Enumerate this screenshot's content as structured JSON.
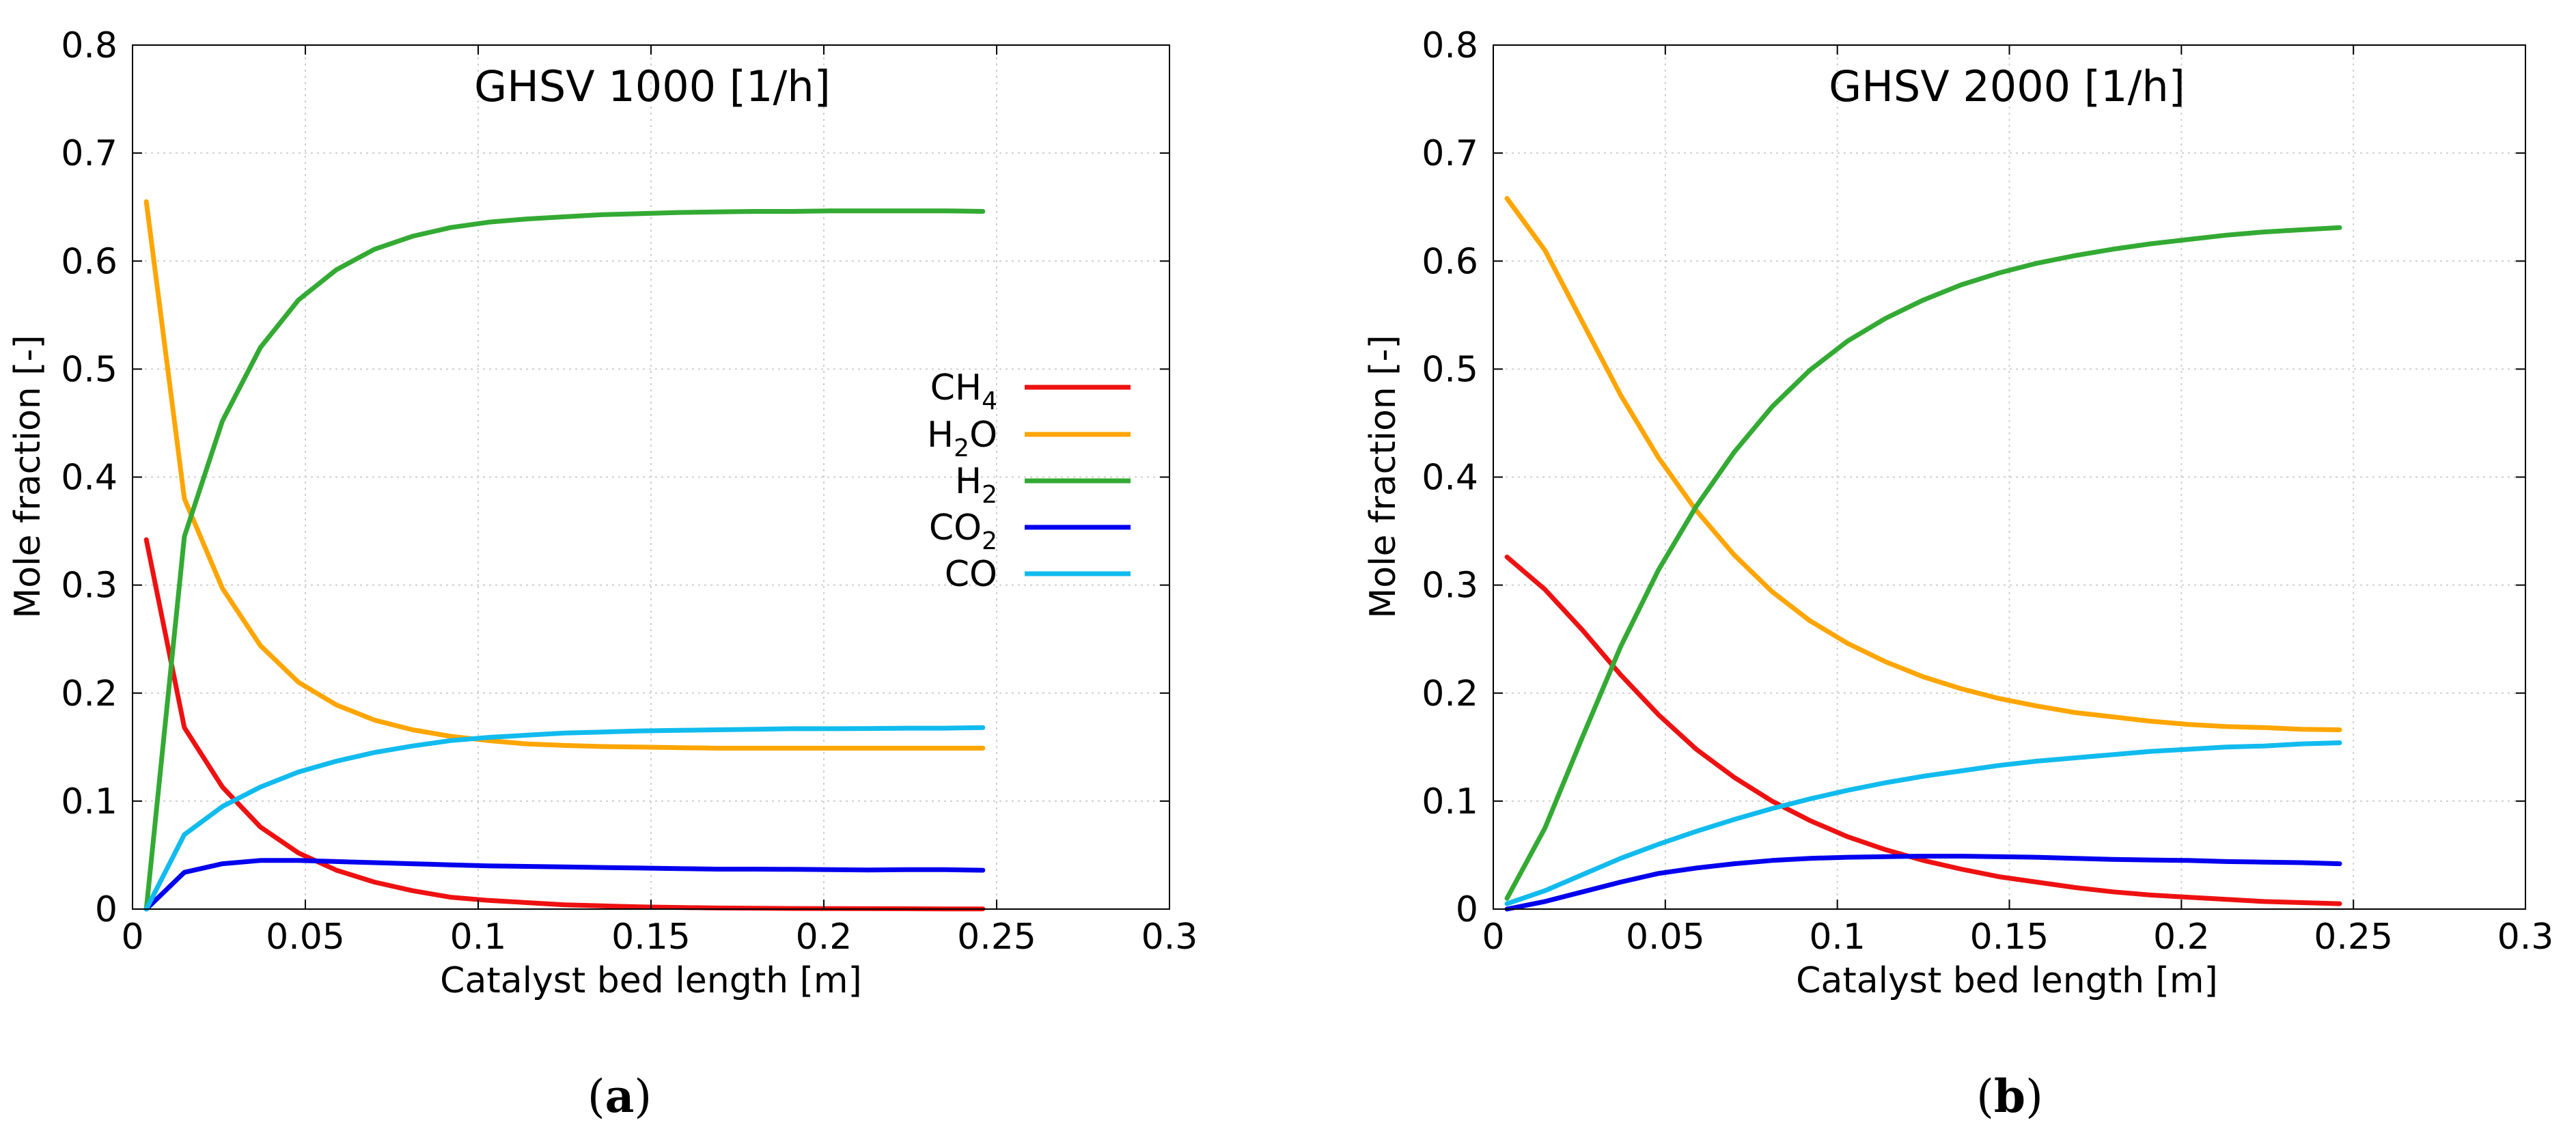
{
  "chart_data": [
    {
      "id": "a",
      "type": "line",
      "panel_label": "a",
      "title": "GHSV 1000 [1/h]",
      "xlabel": "Catalyst bed length [m]",
      "ylabel": "Mole fraction [-]",
      "xlim": [
        0,
        0.3
      ],
      "ylim": [
        0,
        0.8
      ],
      "xticks": [
        "0",
        "0.05",
        "0.1",
        "0.15",
        "0.2",
        "0.25",
        "0.3"
      ],
      "yticks": [
        "0",
        "0.1",
        "0.2",
        "0.3",
        "0.4",
        "0.5",
        "0.6",
        "0.7",
        "0.8"
      ],
      "grid": true,
      "legend": "center-right",
      "x": [
        0.004,
        0.015,
        0.026,
        0.037,
        0.048,
        0.059,
        0.07,
        0.081,
        0.092,
        0.103,
        0.114,
        0.125,
        0.136,
        0.147,
        0.158,
        0.169,
        0.18,
        0.191,
        0.202,
        0.213,
        0.224,
        0.235,
        0.246
      ],
      "series": [
        {
          "name": "CH4",
          "label_main": "CH",
          "label_sub": "4",
          "label_tail": "",
          "color": "#ee1111",
          "values": [
            0.342,
            0.168,
            0.113,
            0.076,
            0.052,
            0.036,
            0.025,
            0.017,
            0.011,
            0.008,
            0.006,
            0.004,
            0.003,
            0.002,
            0.0015,
            0.001,
            0.0008,
            0.0006,
            0.0005,
            0.0004,
            0.0003,
            0.0002,
            0.0002
          ]
        },
        {
          "name": "H2O",
          "label_main": "H",
          "label_sub": "2",
          "label_tail": "O",
          "color": "#ffa500",
          "values": [
            0.655,
            0.38,
            0.297,
            0.244,
            0.21,
            0.189,
            0.175,
            0.166,
            0.16,
            0.156,
            0.153,
            0.1515,
            0.1505,
            0.15,
            0.1495,
            0.149,
            0.149,
            0.149,
            0.149,
            0.149,
            0.149,
            0.149,
            0.149
          ]
        },
        {
          "name": "H2",
          "label_main": "H",
          "label_sub": "2",
          "label_tail": "",
          "color": "#33aa33",
          "values": [
            0.0,
            0.345,
            0.452,
            0.52,
            0.564,
            0.592,
            0.611,
            0.623,
            0.631,
            0.636,
            0.639,
            0.641,
            0.643,
            0.644,
            0.645,
            0.6455,
            0.646,
            0.646,
            0.6465,
            0.6465,
            0.6465,
            0.6465,
            0.646
          ]
        },
        {
          "name": "CO2",
          "label_main": "CO",
          "label_sub": "2",
          "label_tail": "",
          "color": "#0000ee",
          "values": [
            0.0,
            0.034,
            0.042,
            0.045,
            0.045,
            0.044,
            0.043,
            0.042,
            0.041,
            0.04,
            0.0395,
            0.039,
            0.0385,
            0.038,
            0.0375,
            0.037,
            0.037,
            0.0368,
            0.0365,
            0.0362,
            0.0365,
            0.0365,
            0.036
          ]
        },
        {
          "name": "CO",
          "label_main": "CO",
          "label_sub": "",
          "label_tail": "",
          "color": "#11bbee",
          "values": [
            0.0,
            0.069,
            0.095,
            0.113,
            0.127,
            0.137,
            0.145,
            0.151,
            0.156,
            0.159,
            0.161,
            0.163,
            0.164,
            0.165,
            0.1655,
            0.166,
            0.1665,
            0.167,
            0.167,
            0.1672,
            0.1675,
            0.1675,
            0.168
          ]
        }
      ]
    },
    {
      "id": "b",
      "type": "line",
      "panel_label": "b",
      "title": "GHSV 2000 [1/h]",
      "xlabel": "Catalyst bed length [m]",
      "ylabel": "Mole fraction [-]",
      "xlim": [
        0,
        0.3
      ],
      "ylim": [
        0,
        0.8
      ],
      "xticks": [
        "0",
        "0.05",
        "0.1",
        "0.15",
        "0.2",
        "0.25",
        "0.3"
      ],
      "yticks": [
        "0",
        "0.1",
        "0.2",
        "0.3",
        "0.4",
        "0.5",
        "0.6",
        "0.7",
        "0.8"
      ],
      "grid": true,
      "x": [
        0.004,
        0.015,
        0.026,
        0.037,
        0.048,
        0.059,
        0.07,
        0.081,
        0.092,
        0.103,
        0.114,
        0.125,
        0.136,
        0.147,
        0.158,
        0.169,
        0.18,
        0.191,
        0.202,
        0.213,
        0.224,
        0.235,
        0.246
      ],
      "series": [
        {
          "name": "CH4",
          "color": "#ee1111",
          "values": [
            0.326,
            0.296,
            0.258,
            0.217,
            0.18,
            0.148,
            0.122,
            0.1,
            0.082,
            0.067,
            0.055,
            0.045,
            0.037,
            0.03,
            0.025,
            0.02,
            0.016,
            0.013,
            0.011,
            0.009,
            0.007,
            0.006,
            0.005
          ]
        },
        {
          "name": "H2O",
          "color": "#ffa500",
          "values": [
            0.658,
            0.61,
            0.543,
            0.476,
            0.418,
            0.369,
            0.328,
            0.294,
            0.267,
            0.246,
            0.229,
            0.215,
            0.204,
            0.195,
            0.188,
            0.182,
            0.178,
            0.174,
            0.171,
            0.169,
            0.168,
            0.1665,
            0.166
          ]
        },
        {
          "name": "H2",
          "color": "#33aa33",
          "values": [
            0.01,
            0.075,
            0.16,
            0.243,
            0.314,
            0.373,
            0.423,
            0.465,
            0.499,
            0.526,
            0.547,
            0.564,
            0.578,
            0.589,
            0.598,
            0.605,
            0.611,
            0.616,
            0.62,
            0.624,
            0.627,
            0.629,
            0.631
          ]
        },
        {
          "name": "CO2",
          "color": "#0000ee",
          "values": [
            0.0,
            0.007,
            0.016,
            0.025,
            0.033,
            0.038,
            0.042,
            0.045,
            0.047,
            0.048,
            0.0485,
            0.049,
            0.049,
            0.0485,
            0.048,
            0.047,
            0.046,
            0.0455,
            0.045,
            0.044,
            0.0435,
            0.043,
            0.042
          ]
        },
        {
          "name": "CO",
          "color": "#11bbee",
          "values": [
            0.005,
            0.017,
            0.032,
            0.047,
            0.06,
            0.072,
            0.083,
            0.093,
            0.102,
            0.11,
            0.117,
            0.123,
            0.128,
            0.133,
            0.137,
            0.14,
            0.143,
            0.146,
            0.148,
            0.15,
            0.151,
            0.153,
            0.154
          ]
        }
      ]
    }
  ]
}
